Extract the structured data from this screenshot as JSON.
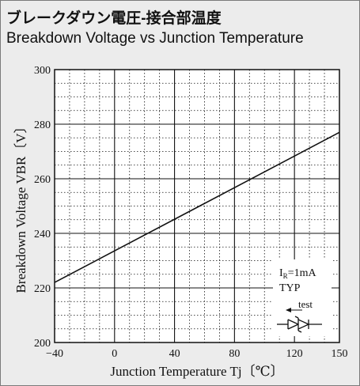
{
  "titles": {
    "jp": "ブレークダウン電圧-接合部温度",
    "en": "Breakdown Voltage vs Junction Temperature"
  },
  "chart_data": {
    "type": "line",
    "title": "Breakdown Voltage vs Junction Temperature",
    "xlabel": "Junction Temperature   Tj〔℃〕",
    "ylabel": "Breakdown Voltage   VBR〔V〕",
    "xlim": [
      -40,
      150
    ],
    "ylim": [
      200,
      300
    ],
    "xticks": [
      -40,
      0,
      40,
      80,
      120,
      150
    ],
    "yticks": [
      200,
      220,
      240,
      260,
      280,
      300
    ],
    "grid": true,
    "series": [
      {
        "x": [
          -40,
          150
        ],
        "y": [
          222,
          277
        ]
      }
    ],
    "annotation": {
      "cond": "IR=1mA",
      "typ": "TYP",
      "test": "test",
      "symbol": "bidirectional-tvs-diode-icon"
    }
  }
}
